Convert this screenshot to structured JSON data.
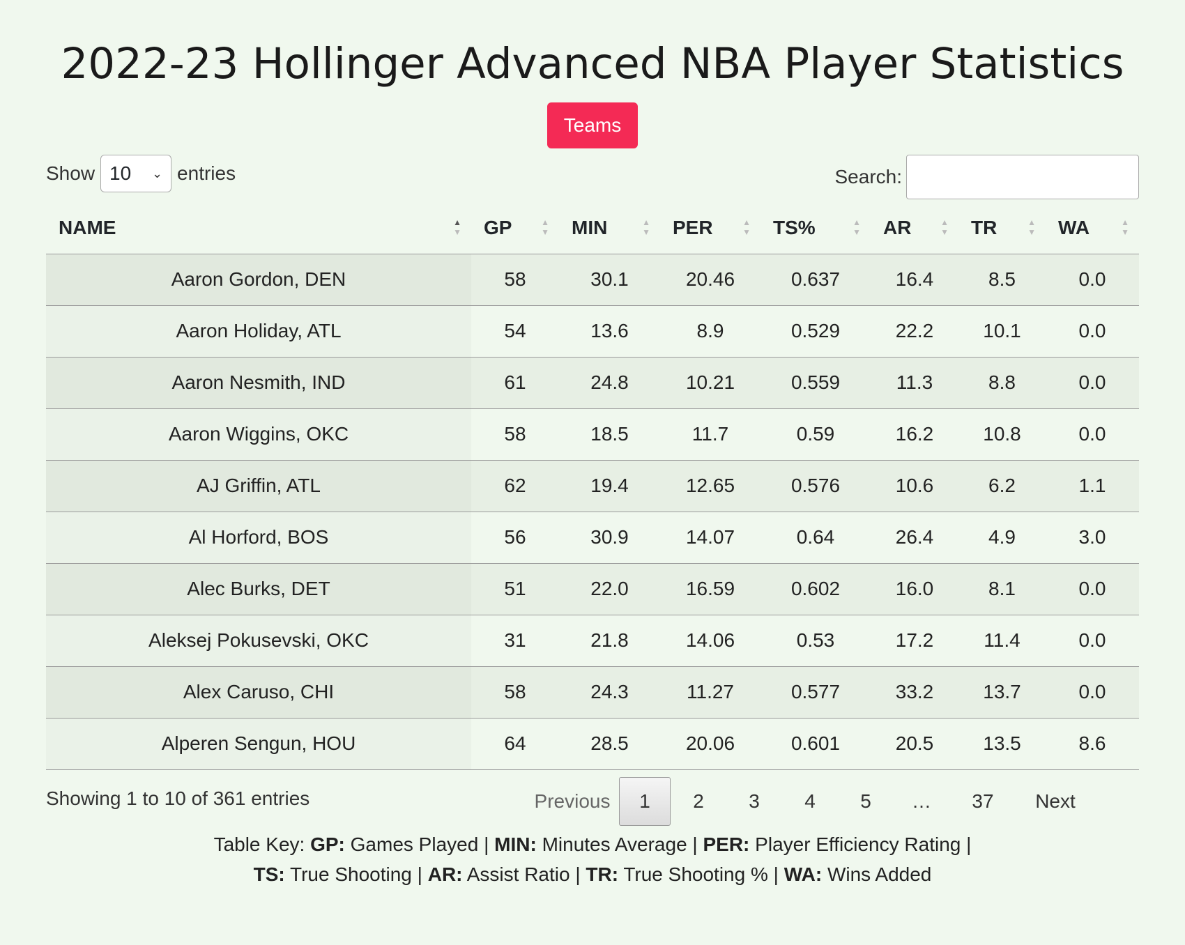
{
  "title": "2022-23 Hollinger Advanced NBA Player Statistics",
  "teams_button": "Teams",
  "length": {
    "show_label": "Show",
    "value": "10",
    "entries_label": "entries"
  },
  "search": {
    "label": "Search:",
    "value": ""
  },
  "columns": [
    "NAME",
    "GP",
    "MIN",
    "PER",
    "TS%",
    "AR",
    "TR",
    "WA"
  ],
  "rows": [
    [
      "Aaron Gordon, DEN",
      "58",
      "30.1",
      "20.46",
      "0.637",
      "16.4",
      "8.5",
      "0.0"
    ],
    [
      "Aaron Holiday, ATL",
      "54",
      "13.6",
      "8.9",
      "0.529",
      "22.2",
      "10.1",
      "0.0"
    ],
    [
      "Aaron Nesmith, IND",
      "61",
      "24.8",
      "10.21",
      "0.559",
      "11.3",
      "8.8",
      "0.0"
    ],
    [
      "Aaron Wiggins, OKC",
      "58",
      "18.5",
      "11.7",
      "0.59",
      "16.2",
      "10.8",
      "0.0"
    ],
    [
      "AJ Griffin, ATL",
      "62",
      "19.4",
      "12.65",
      "0.576",
      "10.6",
      "6.2",
      "1.1"
    ],
    [
      "Al Horford, BOS",
      "56",
      "30.9",
      "14.07",
      "0.64",
      "26.4",
      "4.9",
      "3.0"
    ],
    [
      "Alec Burks, DET",
      "51",
      "22.0",
      "16.59",
      "0.602",
      "16.0",
      "8.1",
      "0.0"
    ],
    [
      "Aleksej Pokusevski, OKC",
      "31",
      "21.8",
      "14.06",
      "0.53",
      "17.2",
      "11.4",
      "0.0"
    ],
    [
      "Alex Caruso, CHI",
      "58",
      "24.3",
      "11.27",
      "0.577",
      "33.2",
      "13.7",
      "0.0"
    ],
    [
      "Alperen Sengun, HOU",
      "64",
      "28.5",
      "20.06",
      "0.601",
      "20.5",
      "13.5",
      "8.6"
    ]
  ],
  "info": "Showing 1 to 10 of 361 entries",
  "pagination": {
    "previous": "Previous",
    "pages": [
      "1",
      "2",
      "3",
      "4",
      "5",
      "…",
      "37"
    ],
    "current": "1",
    "next": "Next"
  },
  "table_key": {
    "items": [
      {
        "abbr": "GP:",
        "desc": "Games Played"
      },
      {
        "abbr": "MIN:",
        "desc": "Minutes Average"
      },
      {
        "abbr": "PER:",
        "desc": "Player Efficiency Rating"
      },
      {
        "abbr": "TS:",
        "desc": "True Shooting"
      },
      {
        "abbr": "AR:",
        "desc": "Assist Ratio"
      },
      {
        "abbr": "TR:",
        "desc": "True Shooting %"
      },
      {
        "abbr": "WA:",
        "desc": "Wins Added"
      }
    ],
    "prefix": "Table Key:"
  }
}
